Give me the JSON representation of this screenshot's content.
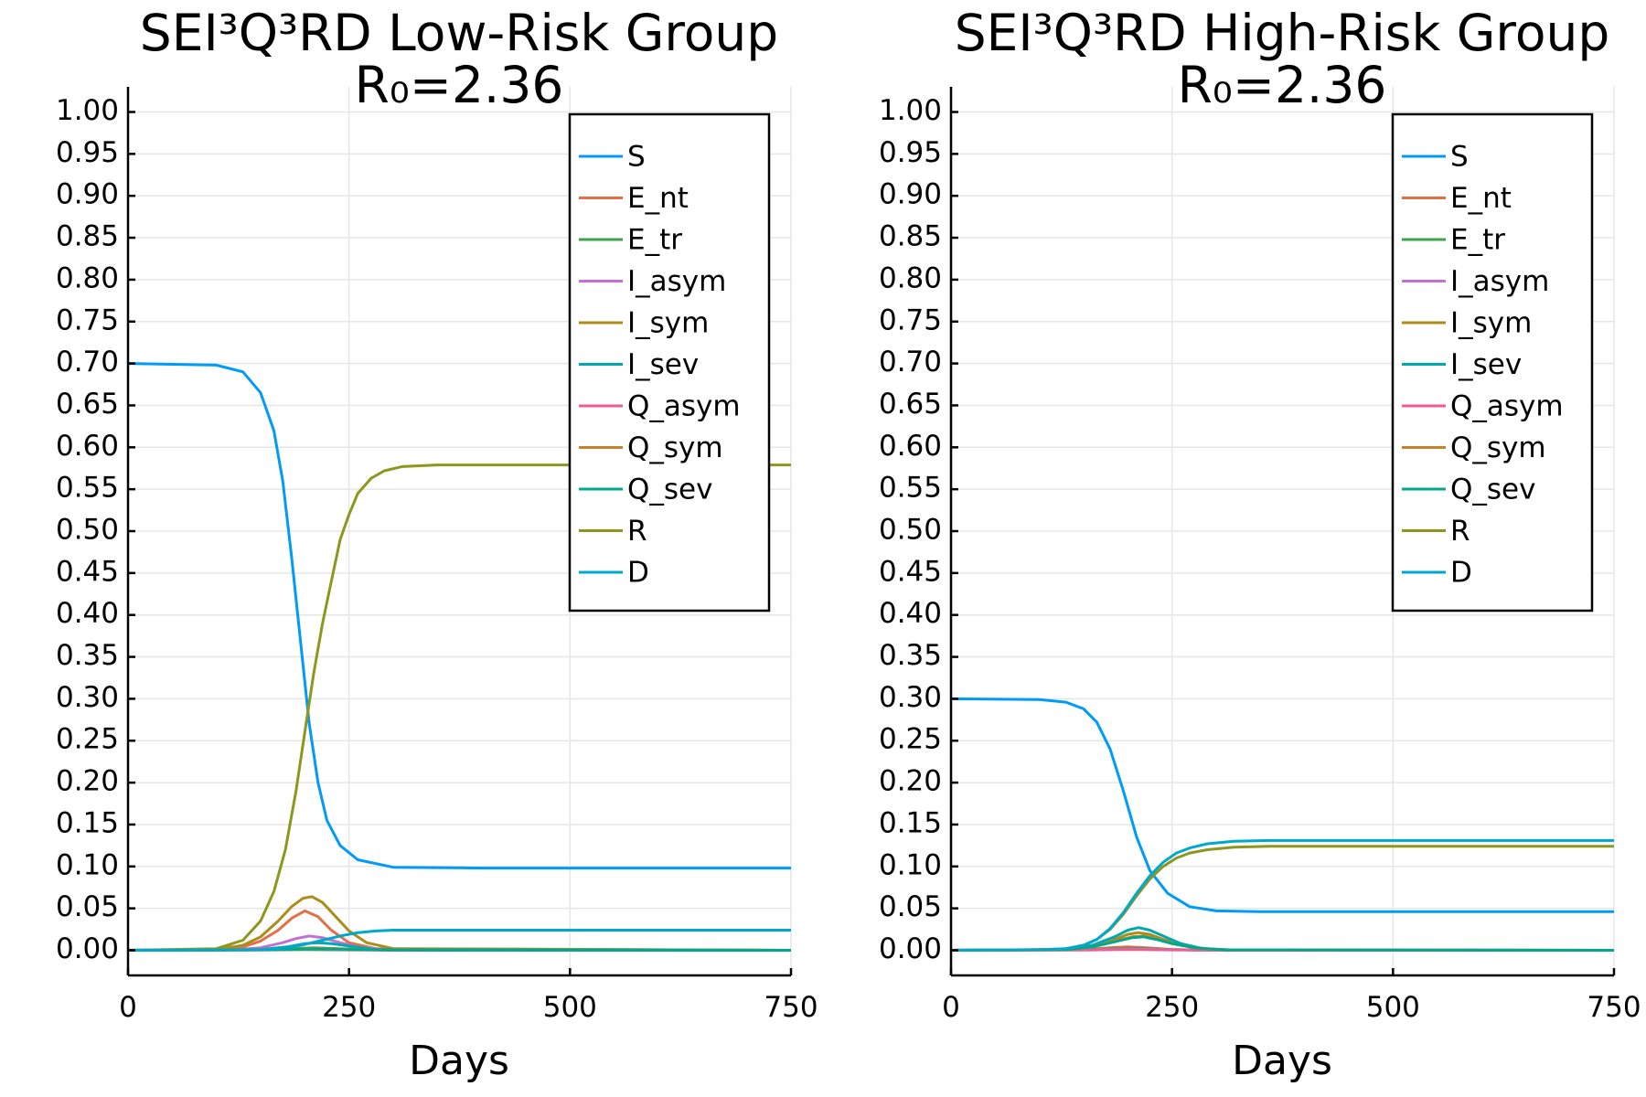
{
  "chart_data": [
    {
      "type": "line",
      "title": "SEI³Q³RD Low-Risk Group",
      "subtitle": "R₀=2.36",
      "xlabel": "Days",
      "ylabel": "",
      "xlim": [
        0,
        750
      ],
      "ylim": [
        -0.03,
        1.03
      ],
      "xticks": [
        0,
        250,
        500,
        750
      ],
      "xtick_labels": [
        "0",
        "250",
        "500",
        "750"
      ],
      "yticks": [
        0,
        0.05,
        0.1,
        0.15,
        0.2,
        0.25,
        0.3,
        0.35,
        0.4,
        0.45,
        0.5,
        0.55,
        0.6,
        0.65,
        0.7,
        0.75,
        0.8,
        0.85,
        0.9,
        0.95,
        1.0
      ],
      "ytick_labels": [
        "0.00",
        "0.05",
        "0.10",
        "0.15",
        "0.20",
        "0.25",
        "0.30",
        "0.35",
        "0.40",
        "0.45",
        "0.50",
        "0.55",
        "0.60",
        "0.65",
        "0.70",
        "0.75",
        "0.80",
        "0.85",
        "0.90",
        "0.95",
        "1.00"
      ],
      "grid": true,
      "legend_position": "top-right",
      "series": [
        {
          "name": "S",
          "color": "#009af9",
          "x": [
            0,
            100,
            130,
            150,
            165,
            175,
            185,
            195,
            205,
            215,
            225,
            240,
            260,
            300,
            400,
            750
          ],
          "y": [
            0.7,
            0.698,
            0.69,
            0.665,
            0.62,
            0.56,
            0.47,
            0.37,
            0.27,
            0.2,
            0.155,
            0.125,
            0.108,
            0.099,
            0.098,
            0.098
          ]
        },
        {
          "name": "E_nt",
          "color": "#e26f46",
          "x": [
            0,
            100,
            130,
            150,
            170,
            185,
            200,
            215,
            230,
            250,
            280,
            750
          ],
          "y": [
            0,
            0.001,
            0.004,
            0.011,
            0.024,
            0.038,
            0.047,
            0.04,
            0.024,
            0.009,
            0.002,
            0
          ]
        },
        {
          "name": "E_tr",
          "color": "#3da44d",
          "x": [
            0,
            150,
            200,
            250,
            300,
            750
          ],
          "y": [
            0,
            0.0003,
            0.0008,
            0.0004,
            0.0001,
            0
          ]
        },
        {
          "name": "I_asym",
          "color": "#c271d2",
          "x": [
            0,
            120,
            150,
            175,
            190,
            205,
            220,
            240,
            260,
            290,
            750
          ],
          "y": [
            0,
            0.0005,
            0.003,
            0.009,
            0.014,
            0.017,
            0.015,
            0.009,
            0.004,
            0.001,
            0
          ]
        },
        {
          "name": "I_sym",
          "color": "#ac8d18",
          "x": [
            0,
            100,
            130,
            150,
            170,
            185,
            198,
            208,
            220,
            235,
            250,
            270,
            300,
            750
          ],
          "y": [
            0,
            0.001,
            0.006,
            0.016,
            0.035,
            0.052,
            0.062,
            0.064,
            0.057,
            0.04,
            0.023,
            0.009,
            0.002,
            0
          ]
        },
        {
          "name": "I_sev",
          "color": "#00a9ad",
          "x": [
            0,
            150,
            180,
            200,
            215,
            230,
            250,
            280,
            750
          ],
          "y": [
            0,
            0.0008,
            0.004,
            0.008,
            0.009,
            0.008,
            0.005,
            0.001,
            0
          ]
        },
        {
          "name": "Q_asym",
          "color": "#ed5d92",
          "x": [
            0,
            150,
            200,
            250,
            300,
            750
          ],
          "y": [
            0,
            0.0005,
            0.002,
            0.0008,
            0.0001,
            0
          ]
        },
        {
          "name": "Q_sym",
          "color": "#c68225",
          "x": [
            0,
            150,
            210,
            260,
            310,
            750
          ],
          "y": [
            0,
            0.0008,
            0.003,
            0.0012,
            0.0002,
            0
          ]
        },
        {
          "name": "Q_sev",
          "color": "#00a98d",
          "x": [
            0,
            150,
            210,
            260,
            310,
            750
          ],
          "y": [
            0,
            0.0005,
            0.002,
            0.001,
            0.0002,
            0
          ]
        },
        {
          "name": "R",
          "color": "#8e971d",
          "x": [
            0,
            100,
            130,
            150,
            165,
            178,
            190,
            200,
            210,
            220,
            230,
            240,
            250,
            260,
            275,
            290,
            310,
            350,
            400,
            750
          ],
          "y": [
            0,
            0.002,
            0.012,
            0.035,
            0.07,
            0.12,
            0.19,
            0.26,
            0.33,
            0.39,
            0.44,
            0.49,
            0.52,
            0.545,
            0.563,
            0.572,
            0.577,
            0.579,
            0.579,
            0.579
          ]
        },
        {
          "name": "D",
          "color": "#00a8cb",
          "x": [
            0,
            150,
            180,
            200,
            220,
            240,
            260,
            280,
            300,
            350,
            750
          ],
          "y": [
            0,
            0.0005,
            0.003,
            0.007,
            0.012,
            0.017,
            0.021,
            0.023,
            0.024,
            0.024,
            0.024
          ]
        }
      ]
    },
    {
      "type": "line",
      "title": "SEI³Q³RD High-Risk Group",
      "subtitle": "R₀=2.36",
      "xlabel": "Days",
      "ylabel": "",
      "xlim": [
        0,
        750
      ],
      "ylim": [
        -0.03,
        1.03
      ],
      "xticks": [
        0,
        250,
        500,
        750
      ],
      "xtick_labels": [
        "0",
        "250",
        "500",
        "750"
      ],
      "yticks": [
        0,
        0.05,
        0.1,
        0.15,
        0.2,
        0.25,
        0.3,
        0.35,
        0.4,
        0.45,
        0.5,
        0.55,
        0.6,
        0.65,
        0.7,
        0.75,
        0.8,
        0.85,
        0.9,
        0.95,
        1.0
      ],
      "ytick_labels": [
        "0.00",
        "0.05",
        "0.10",
        "0.15",
        "0.20",
        "0.25",
        "0.30",
        "0.35",
        "0.40",
        "0.45",
        "0.50",
        "0.55",
        "0.60",
        "0.65",
        "0.70",
        "0.75",
        "0.80",
        "0.85",
        "0.90",
        "0.95",
        "1.00"
      ],
      "grid": true,
      "legend_position": "top-right",
      "series": [
        {
          "name": "S",
          "color": "#009af9",
          "x": [
            0,
            100,
            130,
            150,
            165,
            180,
            195,
            210,
            225,
            245,
            270,
            300,
            350,
            750
          ],
          "y": [
            0.3,
            0.299,
            0.296,
            0.288,
            0.272,
            0.24,
            0.19,
            0.135,
            0.095,
            0.068,
            0.052,
            0.047,
            0.046,
            0.046
          ]
        },
        {
          "name": "E_nt",
          "color": "#e26f46",
          "x": [
            0,
            150,
            180,
            200,
            220,
            250,
            280,
            750
          ],
          "y": [
            0,
            0.0008,
            0.003,
            0.004,
            0.003,
            0.001,
            0.0002,
            0
          ]
        },
        {
          "name": "E_tr",
          "color": "#3da44d",
          "x": [
            0,
            150,
            180,
            200,
            220,
            250,
            280,
            750
          ],
          "y": [
            0,
            0.0005,
            0.002,
            0.0025,
            0.002,
            0.0008,
            0.0002,
            0
          ]
        },
        {
          "name": "I_asym",
          "color": "#c271d2",
          "x": [
            0,
            150,
            200,
            250,
            300,
            750
          ],
          "y": [
            0,
            0.0005,
            0.0015,
            0.0006,
            0.0001,
            0
          ]
        },
        {
          "name": "I_sym",
          "color": "#ac8d18",
          "x": [
            0,
            130,
            160,
            185,
            200,
            212,
            225,
            240,
            260,
            285,
            320,
            750
          ],
          "y": [
            0,
            0.001,
            0.005,
            0.013,
            0.019,
            0.021,
            0.019,
            0.013,
            0.006,
            0.002,
            0.0003,
            0
          ]
        },
        {
          "name": "I_sev",
          "color": "#00a9ad",
          "x": [
            0,
            130,
            160,
            185,
            200,
            212,
            225,
            240,
            260,
            285,
            320,
            750
          ],
          "y": [
            0,
            0.001,
            0.006,
            0.016,
            0.024,
            0.027,
            0.024,
            0.017,
            0.008,
            0.002,
            0.0003,
            0
          ]
        },
        {
          "name": "Q_asym",
          "color": "#ed5d92",
          "x": [
            0,
            150,
            200,
            250,
            300,
            750
          ],
          "y": [
            0,
            0.0003,
            0.001,
            0.0004,
            0.0001,
            0
          ]
        },
        {
          "name": "Q_sym",
          "color": "#c68225",
          "x": [
            0,
            130,
            160,
            185,
            205,
            218,
            232,
            250,
            275,
            310,
            750
          ],
          "y": [
            0,
            0.0008,
            0.004,
            0.011,
            0.016,
            0.017,
            0.014,
            0.008,
            0.003,
            0.0004,
            0
          ]
        },
        {
          "name": "Q_sev",
          "color": "#00a98d",
          "x": [
            0,
            130,
            160,
            185,
            205,
            218,
            232,
            250,
            275,
            310,
            750
          ],
          "y": [
            0,
            0.0008,
            0.004,
            0.01,
            0.015,
            0.016,
            0.013,
            0.008,
            0.003,
            0.0004,
            0
          ]
        },
        {
          "name": "R",
          "color": "#8e971d",
          "x": [
            0,
            100,
            130,
            150,
            165,
            180,
            195,
            210,
            225,
            240,
            255,
            270,
            290,
            320,
            360,
            400,
            750
          ],
          "y": [
            0,
            0.0005,
            0.002,
            0.006,
            0.013,
            0.025,
            0.043,
            0.065,
            0.085,
            0.1,
            0.11,
            0.116,
            0.12,
            0.123,
            0.124,
            0.124,
            0.124
          ]
        },
        {
          "name": "D",
          "color": "#00a8cb",
          "x": [
            0,
            100,
            130,
            150,
            165,
            180,
            195,
            210,
            225,
            240,
            255,
            270,
            290,
            320,
            360,
            400,
            750
          ],
          "y": [
            0,
            0.0005,
            0.002,
            0.006,
            0.013,
            0.026,
            0.045,
            0.068,
            0.089,
            0.105,
            0.116,
            0.122,
            0.127,
            0.13,
            0.131,
            0.131,
            0.131
          ]
        }
      ]
    }
  ]
}
